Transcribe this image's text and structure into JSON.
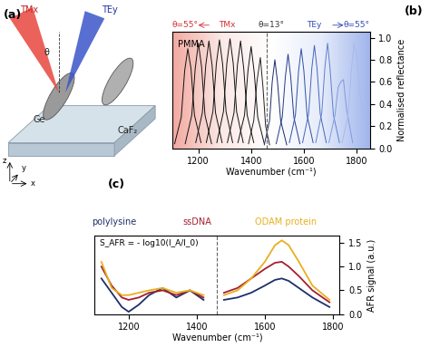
{
  "diagram": {
    "panel": "(a)",
    "beams": [
      "TMx",
      "TEy"
    ],
    "angle": "θ",
    "materials": [
      "Ge",
      "CaF₂"
    ],
    "axes_labels": [
      "z",
      "y",
      "x"
    ]
  },
  "chart_data": [
    {
      "type": "line",
      "panel": "(b)",
      "header": [
        "θ=55°",
        "TMx",
        "θ=13°",
        "TEy",
        "θ=55°"
      ],
      "annotation": "PMMA",
      "x_label": "Wavenumber (cm⁻¹)",
      "y_label": "Normalised reflectance",
      "xlim": [
        1100,
        1850
      ],
      "xticks": [
        1200,
        1400,
        1600,
        1800
      ],
      "ylim": [
        0,
        1.05
      ],
      "yticks": [
        0.0,
        0.2,
        0.4,
        0.6,
        0.8,
        1.0
      ],
      "vline": 1460,
      "grid": false,
      "series": [
        {
          "color": "#111111",
          "x": [
            1110,
            1135,
            1148,
            1160,
            1172,
            1185,
            1210
          ],
          "values": [
            0.04,
            0.28,
            0.7,
            0.9,
            0.72,
            0.3,
            0.05
          ]
        },
        {
          "color": "#111111",
          "x": [
            1150,
            1175,
            1188,
            1200,
            1212,
            1225,
            1250
          ],
          "values": [
            0.04,
            0.3,
            0.72,
            0.95,
            0.74,
            0.3,
            0.04
          ]
        },
        {
          "color": "#111111",
          "x": [
            1190,
            1215,
            1228,
            1240,
            1252,
            1265,
            1290
          ],
          "values": [
            0.05,
            0.32,
            0.75,
            0.97,
            0.75,
            0.32,
            0.05
          ]
        },
        {
          "color": "#111111",
          "x": [
            1230,
            1255,
            1268,
            1280,
            1292,
            1305,
            1330
          ],
          "values": [
            0.05,
            0.33,
            0.76,
            0.98,
            0.76,
            0.33,
            0.05
          ]
        },
        {
          "color": "#111111",
          "x": [
            1270,
            1295,
            1308,
            1320,
            1332,
            1345,
            1370
          ],
          "values": [
            0.05,
            0.33,
            0.77,
            0.99,
            0.77,
            0.33,
            0.05
          ]
        },
        {
          "color": "#111111",
          "x": [
            1310,
            1335,
            1348,
            1360,
            1372,
            1385,
            1410
          ],
          "values": [
            0.05,
            0.32,
            0.75,
            0.97,
            0.72,
            0.3,
            0.05
          ]
        },
        {
          "color": "#111111",
          "x": [
            1350,
            1375,
            1388,
            1400,
            1412,
            1425,
            1450
          ],
          "values": [
            0.05,
            0.3,
            0.7,
            0.92,
            0.68,
            0.28,
            0.04
          ]
        },
        {
          "color": "#222222",
          "x": [
            1390,
            1410,
            1422,
            1435,
            1445,
            1455,
            1470
          ],
          "values": [
            0.04,
            0.25,
            0.6,
            0.82,
            0.55,
            0.2,
            0.03
          ]
        },
        {
          "color": "#1a2a6c",
          "x": [
            1450,
            1470,
            1480,
            1490,
            1500,
            1512,
            1535
          ],
          "values": [
            0.03,
            0.25,
            0.6,
            0.8,
            0.6,
            0.25,
            0.03
          ]
        },
        {
          "color": "#243a8a",
          "x": [
            1495,
            1518,
            1530,
            1540,
            1550,
            1562,
            1585
          ],
          "values": [
            0.04,
            0.28,
            0.65,
            0.85,
            0.65,
            0.28,
            0.04
          ]
        },
        {
          "color": "#2f4fa8",
          "x": [
            1545,
            1568,
            1580,
            1590,
            1600,
            1612,
            1635
          ],
          "values": [
            0.05,
            0.3,
            0.7,
            0.9,
            0.7,
            0.3,
            0.05
          ]
        },
        {
          "color": "#4565bf",
          "x": [
            1595,
            1618,
            1630,
            1640,
            1650,
            1662,
            1685
          ],
          "values": [
            0.05,
            0.31,
            0.72,
            0.93,
            0.72,
            0.31,
            0.05
          ]
        },
        {
          "color": "#5f7fd0",
          "x": [
            1645,
            1668,
            1680,
            1690,
            1700,
            1712,
            1735
          ],
          "values": [
            0.05,
            0.32,
            0.74,
            0.95,
            0.7,
            0.3,
            0.05
          ]
        },
        {
          "color": "#7e9ade",
          "x": [
            1695,
            1718,
            1730,
            1740,
            1750,
            1762,
            1785
          ],
          "values": [
            0.05,
            0.3,
            0.55,
            0.6,
            0.62,
            0.35,
            0.05
          ]
        },
        {
          "color": "#a6bbeb",
          "x": [
            1745,
            1768,
            1780,
            1790,
            1800,
            1812,
            1835
          ],
          "values": [
            0.05,
            0.3,
            0.7,
            0.95,
            0.85,
            0.5,
            0.2
          ]
        }
      ]
    },
    {
      "type": "line",
      "panel": "(c)",
      "annotation": "S_AFR = - log10(I_A/I_0)",
      "x_label": "Wavenumber (cm⁻¹)",
      "y_label": "AFR signal (a.u.)",
      "xlim": [
        1100,
        1820
      ],
      "xticks": [
        1200,
        1400,
        1600,
        1800
      ],
      "ylim": [
        0,
        1.65
      ],
      "yticks": [
        0.0,
        0.5,
        1.0,
        1.5
      ],
      "vline": 1460,
      "grid": false,
      "x": [
        1120,
        1150,
        1180,
        1200,
        1230,
        1260,
        1300,
        1340,
        1380,
        1420,
        1460,
        1480,
        1520,
        1560,
        1600,
        1630,
        1650,
        1670,
        1700,
        1740,
        1790
      ],
      "series": [
        {
          "name": "polylysine",
          "color": "#1f2f6b",
          "values": [
            0.75,
            0.45,
            0.15,
            0.05,
            0.2,
            0.4,
            0.55,
            0.35,
            0.5,
            0.3,
            null,
            0.3,
            0.35,
            0.45,
            0.6,
            0.72,
            0.75,
            0.7,
            0.55,
            0.35,
            0.15
          ]
        },
        {
          "name": "ssDNA",
          "color": "#a3202e",
          "values": [
            1.0,
            0.6,
            0.35,
            0.3,
            0.35,
            0.45,
            0.5,
            0.4,
            0.5,
            0.35,
            null,
            0.45,
            0.55,
            0.75,
            0.95,
            1.08,
            1.1,
            1.0,
            0.8,
            0.5,
            0.25
          ]
        },
        {
          "name": "ODAM protein",
          "color": "#e8b020",
          "values": [
            1.1,
            0.55,
            0.4,
            0.4,
            0.45,
            0.5,
            0.55,
            0.45,
            0.5,
            0.4,
            null,
            0.4,
            0.5,
            0.75,
            1.1,
            1.45,
            1.55,
            1.45,
            1.1,
            0.6,
            0.3
          ]
        }
      ]
    }
  ]
}
